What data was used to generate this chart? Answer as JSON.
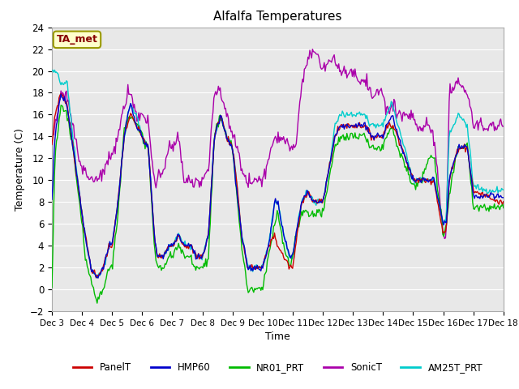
{
  "title": "Alfalfa Temperatures",
  "ylabel": "Temperature (C)",
  "xlabel": "Time",
  "annotation": "TA_met",
  "ylim": [
    -2,
    24
  ],
  "background_color": "#ffffff",
  "plot_bg_color": "#e8e8e8",
  "series_colors": {
    "PanelT": "#cc0000",
    "HMP60": "#0000cc",
    "NR01_PRT": "#00bb00",
    "SonicT": "#aa00aa",
    "AM25T_PRT": "#00cccc"
  },
  "x_tick_labels": [
    "Dec 3",
    "Dec 4",
    "Dec 5",
    "Dec 6",
    "Dec 7",
    "Dec 8",
    "Dec 9",
    "Dec 10",
    "Dec 11",
    "Dec 12",
    "Dec 13",
    "Dec 14",
    "Dec 15",
    "Dec 16",
    "Dec 17",
    "Dec 18"
  ]
}
